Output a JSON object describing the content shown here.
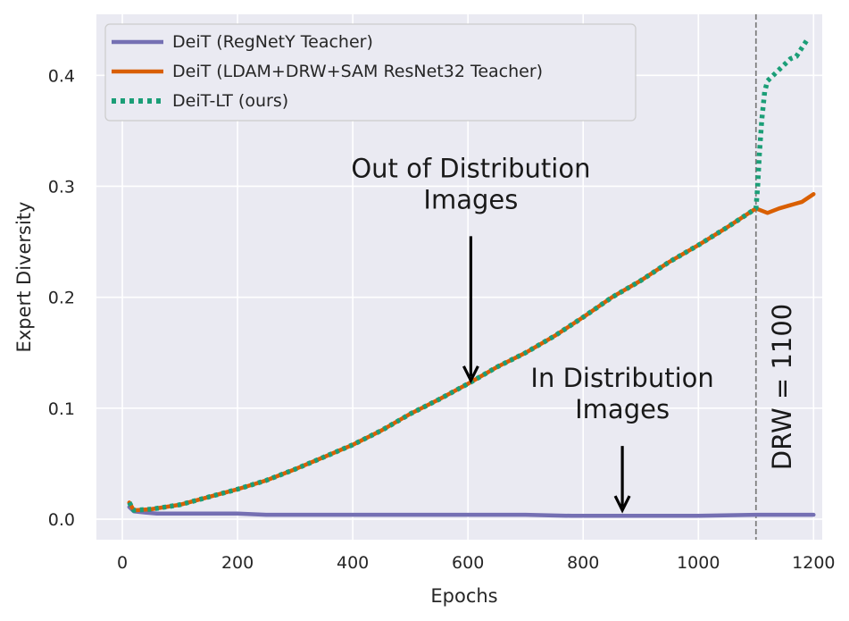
{
  "chart_data": {
    "type": "line",
    "title": "",
    "xlabel": "Epochs",
    "ylabel": "Expert Diversity",
    "xlim": [
      -45,
      1215
    ],
    "ylim": [
      -0.0185,
      0.455
    ],
    "xticks": [
      0,
      200,
      400,
      600,
      800,
      1000,
      1200
    ],
    "yticks": [
      0.0,
      0.1,
      0.2,
      0.3,
      0.4
    ],
    "xtick_labels": [
      "0",
      "200",
      "400",
      "600",
      "800",
      "1000",
      "1200"
    ],
    "ytick_labels": [
      "0.0",
      "0.1",
      "0.2",
      "0.3",
      "0.4"
    ],
    "grid": true,
    "legend_position": "top-left",
    "series": [
      {
        "name": "DeiT (RegNetY Teacher)",
        "color": "#7570b3",
        "style": "solid",
        "x": [
          12,
          20,
          40,
          60,
          100,
          150,
          200,
          250,
          300,
          400,
          500,
          600,
          700,
          780,
          800,
          900,
          1000,
          1100,
          1200
        ],
        "y": [
          0.011,
          0.007,
          0.006,
          0.005,
          0.005,
          0.005,
          0.005,
          0.004,
          0.004,
          0.004,
          0.004,
          0.004,
          0.004,
          0.003,
          0.003,
          0.003,
          0.003,
          0.004,
          0.004
        ]
      },
      {
        "name": "DeiT (LDAM+DRW+SAM ResNet32 Teacher)",
        "color": "#d95f02",
        "style": "solid",
        "x": [
          12,
          20,
          50,
          100,
          150,
          200,
          250,
          300,
          350,
          400,
          450,
          500,
          550,
          600,
          650,
          700,
          750,
          800,
          850,
          900,
          950,
          1000,
          1050,
          1100,
          1120,
          1140,
          1160,
          1180,
          1200
        ],
        "y": [
          0.015,
          0.008,
          0.009,
          0.013,
          0.02,
          0.027,
          0.035,
          0.045,
          0.056,
          0.067,
          0.08,
          0.095,
          0.108,
          0.122,
          0.137,
          0.15,
          0.165,
          0.182,
          0.2,
          0.215,
          0.232,
          0.247,
          0.263,
          0.28,
          0.276,
          0.28,
          0.283,
          0.286,
          0.293
        ]
      },
      {
        "name": "DeiT-LT (ours)",
        "color": "#1b9e77",
        "style": "dotted",
        "x": [
          12,
          20,
          50,
          100,
          150,
          200,
          250,
          300,
          350,
          400,
          450,
          500,
          550,
          600,
          650,
          700,
          750,
          800,
          850,
          900,
          950,
          1000,
          1050,
          1100,
          1103,
          1106,
          1110,
          1115,
          1120,
          1130,
          1140,
          1150,
          1160,
          1170,
          1180,
          1190
        ],
        "y": [
          0.015,
          0.008,
          0.009,
          0.013,
          0.02,
          0.027,
          0.035,
          0.045,
          0.056,
          0.067,
          0.08,
          0.095,
          0.108,
          0.122,
          0.137,
          0.15,
          0.165,
          0.182,
          0.2,
          0.215,
          0.232,
          0.247,
          0.263,
          0.28,
          0.3,
          0.33,
          0.36,
          0.385,
          0.395,
          0.4,
          0.405,
          0.41,
          0.415,
          0.417,
          0.425,
          0.433
        ]
      }
    ],
    "vline": {
      "x": 1100,
      "color": "#808080",
      "style": "dashed",
      "label": "DRW = 1100"
    },
    "annotations": [
      {
        "text_lines": [
          "Out of Distribution",
          "Images"
        ],
        "arrow_x": 605,
        "arrow_y_start": 0.255,
        "arrow_y_end": 0.125
      },
      {
        "text_lines": [
          "In Distribution",
          "Images"
        ],
        "arrow_x": 868,
        "arrow_y_start": 0.066,
        "arrow_y_end": 0.008
      }
    ]
  }
}
